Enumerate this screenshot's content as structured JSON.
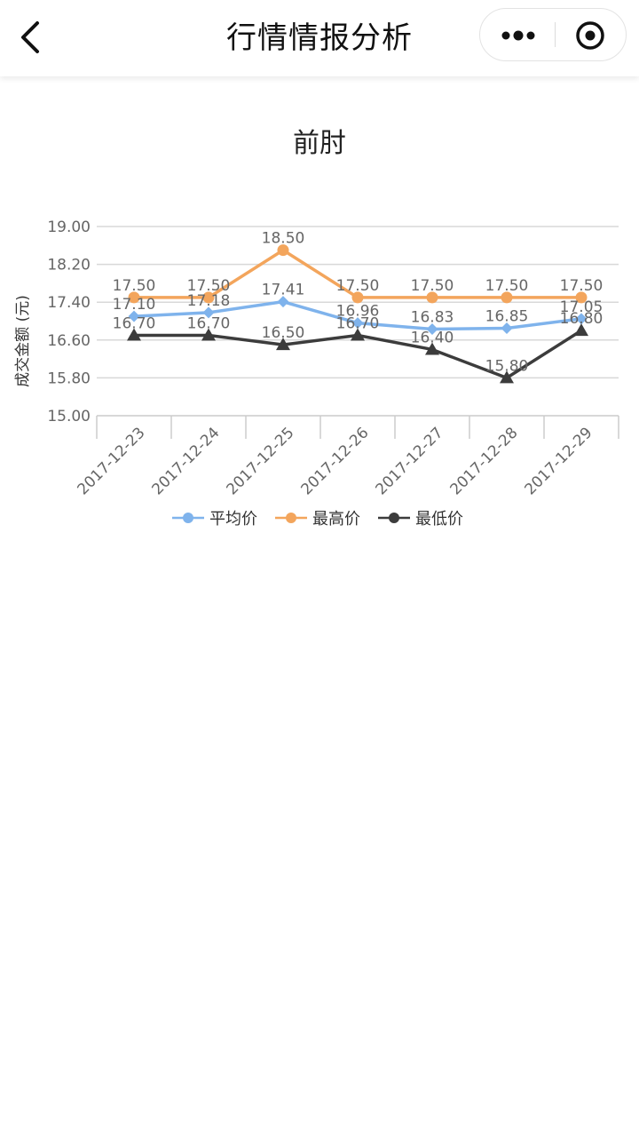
{
  "nav": {
    "title": "行情情报分析"
  },
  "colors": {
    "avg": "#7fb3ec",
    "max": "#f3a55c",
    "min": "#3c3c3c",
    "grid": "#d8d8d8",
    "axis_text": "#666666"
  },
  "chart_data": {
    "type": "line",
    "title": "前肘",
    "ylabel": "成交金额 (元)",
    "xlabel": "",
    "ylim": [
      15.0,
      19.0
    ],
    "yticks": [
      "15.00",
      "15.80",
      "16.60",
      "17.40",
      "18.20",
      "19.00"
    ],
    "categories": [
      "2017-12-23",
      "2017-12-24",
      "2017-12-25",
      "2017-12-26",
      "2017-12-27",
      "2017-12-28",
      "2017-12-29"
    ],
    "series": [
      {
        "name": "平均价",
        "marker": "diamond",
        "color": "#7fb3ec",
        "values": [
          17.1,
          17.18,
          17.41,
          16.96,
          16.83,
          16.85,
          17.05
        ],
        "labels": [
          "17.10",
          "17.18",
          "17.41",
          "16.96",
          "16.83",
          "16.85",
          "17.05"
        ]
      },
      {
        "name": "最高价",
        "marker": "circle",
        "color": "#f3a55c",
        "values": [
          17.5,
          17.5,
          18.5,
          17.5,
          17.5,
          17.5,
          17.5
        ],
        "labels": [
          "17.50",
          "17.50",
          "18.50",
          "17.50",
          "17.50",
          "17.50",
          "17.50"
        ]
      },
      {
        "name": "最低价",
        "marker": "triangle",
        "color": "#3c3c3c",
        "values": [
          16.7,
          16.7,
          16.5,
          16.7,
          16.4,
          15.8,
          16.8
        ],
        "labels": [
          "16.70",
          "16.70",
          "16.50",
          "16.70",
          "16.40",
          "15.80",
          "16.80"
        ]
      }
    ],
    "legend": "bottom-center",
    "grid": true
  }
}
